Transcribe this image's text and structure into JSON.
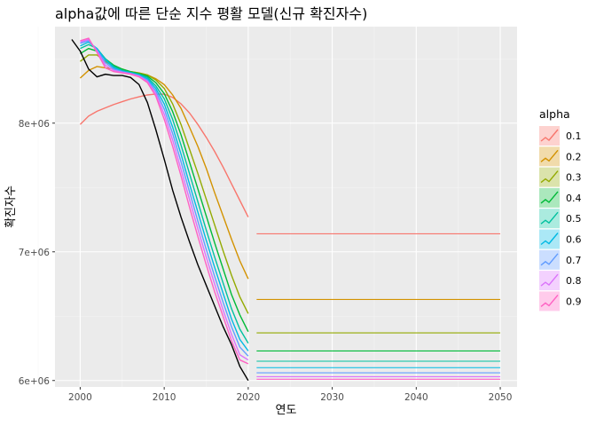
{
  "chart_data": {
    "type": "line",
    "title": "alpha값에 따른 단순 지수 평활 모델(신규 확진자수)",
    "xlabel": "연도",
    "ylabel": "확진자수",
    "xlim": [
      1997,
      2052
    ],
    "ylim": [
      5950000,
      8750000
    ],
    "x_ticks": [
      2000,
      2010,
      2020,
      2030,
      2040,
      2050
    ],
    "x_tick_labels": [
      "2000",
      "2010",
      "2020",
      "2030",
      "2040",
      "2050"
    ],
    "y_ticks": [
      6000000,
      7000000,
      8000000
    ],
    "y_tick_labels": [
      "6e+06",
      "7e+06",
      "8e+06"
    ],
    "grid": true,
    "legend_title": "alpha",
    "legend_position": "right",
    "actual": {
      "color": "#000000",
      "x": [
        1999,
        2000,
        2001,
        2002,
        2003,
        2004,
        2005,
        2006,
        2007,
        2008,
        2009,
        2010,
        2011,
        2012,
        2013,
        2014,
        2015,
        2016,
        2017,
        2018,
        2019,
        2020
      ],
      "values": [
        8650000,
        8560000,
        8420000,
        8360000,
        8380000,
        8370000,
        8370000,
        8355000,
        8300000,
        8160000,
        7950000,
        7720000,
        7480000,
        7270000,
        7080000,
        6900000,
        6740000,
        6580000,
        6420000,
        6280000,
        6110000,
        6000000
      ]
    },
    "series": [
      {
        "name": "0.1",
        "color": "#F8766D",
        "fitted": [
          7990000,
          8055000,
          8092000,
          8119000,
          8145000,
          8167000,
          8188000,
          8205000,
          8219000,
          8226000,
          8225000,
          8200000,
          8150000,
          8080000,
          7990000,
          7890000,
          7780000,
          7660000,
          7530000,
          7400000,
          7270000
        ],
        "forecast": 7140000
      },
      {
        "name": "0.2",
        "color": "#D39200",
        "fitted": [
          8350000,
          8410000,
          8440000,
          8430000,
          8420000,
          8410000,
          8400000,
          8390000,
          8375000,
          8345000,
          8300000,
          8220000,
          8115000,
          7970000,
          7820000,
          7650000,
          7460000,
          7280000,
          7100000,
          6930000,
          6790000
        ],
        "forecast": 6630000
      },
      {
        "name": "0.3",
        "color": "#93AA00",
        "fitted": [
          8480000,
          8530000,
          8530000,
          8480000,
          8440000,
          8420000,
          8400000,
          8390000,
          8375000,
          8335000,
          8270000,
          8150000,
          7990000,
          7800000,
          7610000,
          7410000,
          7210000,
          7010000,
          6820000,
          6650000,
          6520000
        ],
        "forecast": 6370000
      },
      {
        "name": "0.4",
        "color": "#00BA38",
        "fitted": [
          8540000,
          8580000,
          8560000,
          8500000,
          8450000,
          8420000,
          8400000,
          8385000,
          8365000,
          8315000,
          8230000,
          8090000,
          7910000,
          7700000,
          7490000,
          7280000,
          7070000,
          6870000,
          6670000,
          6510000,
          6380000
        ],
        "forecast": 6230000
      },
      {
        "name": "0.5",
        "color": "#00C19F",
        "fitted": [
          8580000,
          8610000,
          8580000,
          8500000,
          8440000,
          8410000,
          8395000,
          8380000,
          8355000,
          8290000,
          8190000,
          8030000,
          7830000,
          7610000,
          7390000,
          7170000,
          6960000,
          6760000,
          6560000,
          6400000,
          6290000
        ],
        "forecast": 6150000
      },
      {
        "name": "0.6",
        "color": "#00B9E3",
        "fitted": [
          8600000,
          8630000,
          8580000,
          8490000,
          8430000,
          8405000,
          8390000,
          8375000,
          8345000,
          8270000,
          8150000,
          7970000,
          7760000,
          7530000,
          7310000,
          7090000,
          6880000,
          6680000,
          6480000,
          6320000,
          6230000
        ],
        "forecast": 6100000
      },
      {
        "name": "0.7",
        "color": "#619CFF",
        "fitted": [
          8620000,
          8640000,
          8570000,
          8470000,
          8420000,
          8400000,
          8385000,
          8370000,
          8335000,
          8250000,
          8110000,
          7920000,
          7700000,
          7470000,
          7240000,
          7020000,
          6810000,
          6610000,
          6420000,
          6260000,
          6190000
        ],
        "forecast": 6060000
      },
      {
        "name": "0.8",
        "color": "#DB72FB",
        "fitted": [
          8630000,
          8650000,
          8560000,
          8450000,
          8410000,
          8395000,
          8385000,
          8365000,
          8325000,
          8230000,
          8070000,
          7870000,
          7640000,
          7410000,
          7180000,
          6960000,
          6750000,
          6550000,
          6360000,
          6200000,
          6160000
        ],
        "forecast": 6030000
      },
      {
        "name": "0.9",
        "color": "#FF61C3",
        "fitted": [
          8640000,
          8660000,
          8550000,
          8430000,
          8400000,
          8390000,
          8380000,
          8360000,
          8315000,
          8210000,
          8030000,
          7820000,
          7590000,
          7350000,
          7120000,
          6900000,
          6690000,
          6500000,
          6310000,
          6160000,
          6130000
        ],
        "forecast": 6010000
      }
    ],
    "fitted_x": [
      2000,
      2001,
      2002,
      2003,
      2004,
      2005,
      2006,
      2007,
      2008,
      2009,
      2010,
      2011,
      2012,
      2013,
      2014,
      2015,
      2016,
      2017,
      2018,
      2019,
      2020
    ],
    "forecast_x": [
      2021,
      2050
    ]
  }
}
